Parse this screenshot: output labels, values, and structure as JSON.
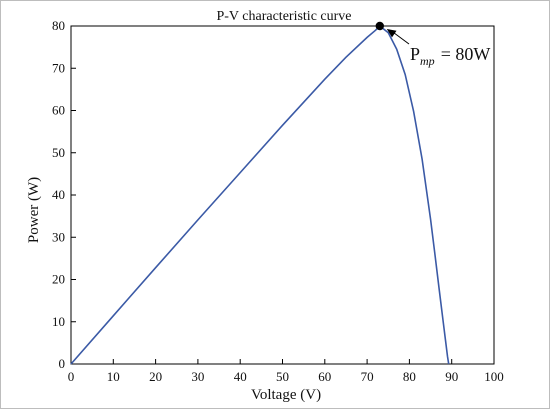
{
  "chart_data": {
    "type": "line",
    "title": "P-V characteristic curve",
    "xlabel": "Voltage (V)",
    "ylabel": "Power (W)",
    "xlim": [
      0,
      100
    ],
    "ylim": [
      0,
      80
    ],
    "xticks": [
      0,
      10,
      20,
      30,
      40,
      50,
      60,
      70,
      80,
      90,
      100
    ],
    "yticks": [
      0,
      10,
      20,
      30,
      40,
      50,
      60,
      70,
      80
    ],
    "grid": false,
    "series": [
      {
        "color": "#3b5aa6",
        "x": [
          0,
          10,
          20,
          30,
          40,
          50,
          60,
          65,
          70,
          72,
          73,
          75,
          77,
          79,
          81,
          83,
          85,
          86,
          87,
          88,
          88.5,
          89,
          89.3
        ],
        "y": [
          0,
          11.4,
          22.8,
          34.1,
          45.3,
          56.5,
          67.4,
          72.6,
          77.3,
          79.0,
          80.0,
          78.4,
          74.5,
          68.5,
          59.8,
          48.5,
          34.2,
          26.2,
          18.0,
          10.0,
          5.8,
          1.8,
          0
        ]
      }
    ],
    "mpp": {
      "x": 73,
      "y": 80
    },
    "annotations": [
      {
        "text_main": "P",
        "text_sub": "mp",
        "text_value": "= 80W"
      }
    ]
  }
}
